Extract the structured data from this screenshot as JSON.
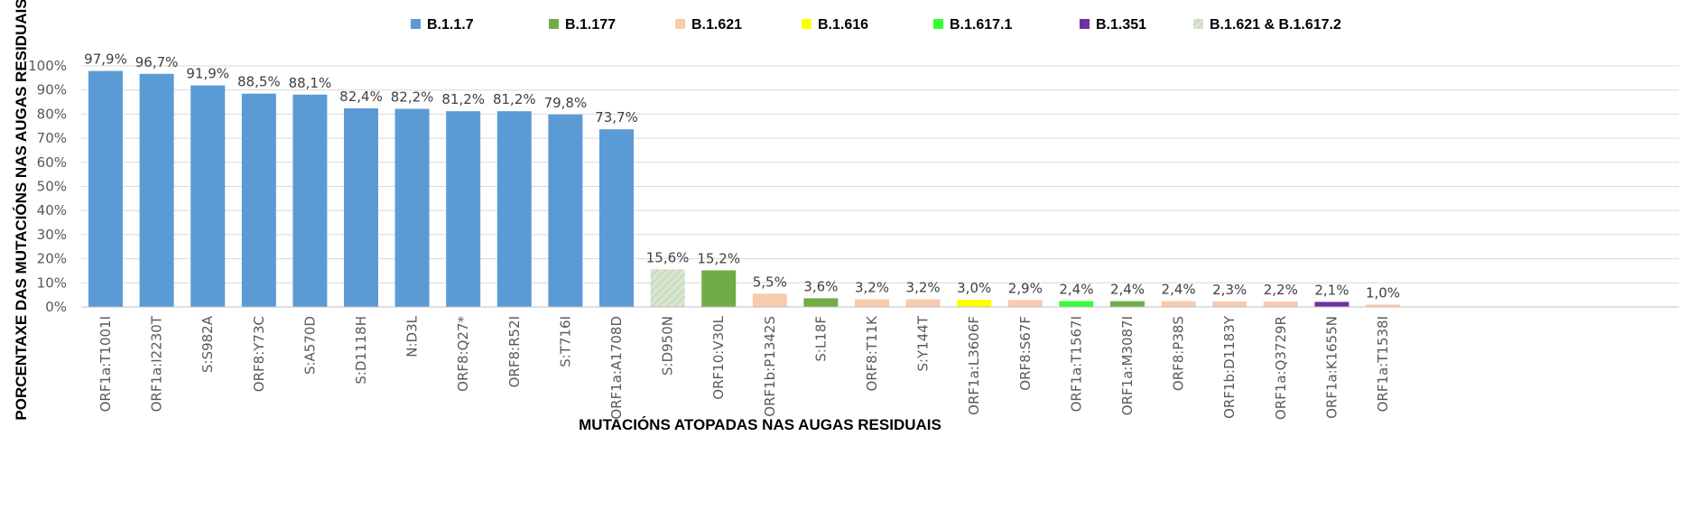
{
  "chart_data": {
    "type": "bar",
    "title": "",
    "xlabel": "MUTACIÓNS ATOPADAS NAS AUGAS RESIDUAIS",
    "ylabel": "PORCENTAXE DAS MUTACIÓNS NAS AUGAS RESIDUAIS",
    "ylim": [
      0,
      100
    ],
    "yticks": [
      "0%",
      "10%",
      "20%",
      "30%",
      "40%",
      "50%",
      "60%",
      "70%",
      "80%",
      "90%",
      "100%"
    ],
    "grid": true,
    "legend_position": "top",
    "legend": [
      {
        "name": "B.1.1.7",
        "color": "#5b9bd5"
      },
      {
        "name": "B.1.177",
        "color": "#70ad47"
      },
      {
        "name": "B.1.621",
        "color": "#f8cbad"
      },
      {
        "name": "B.1.616",
        "color": "#ffff00"
      },
      {
        "name": "B.1.617.1",
        "color": "#33ff33"
      },
      {
        "name": "B.1.351",
        "color": "#7030a0"
      },
      {
        "name": "B.1.621  &  B.1.617.2",
        "color": "hatched"
      }
    ],
    "categories": [
      "ORF1a:T1001I",
      "ORF1a:I2230T",
      "S:S982A",
      "ORF8:Y73C",
      "S:A570D",
      "S:D1118H",
      "N:D3L",
      "ORF8:Q27*",
      "ORF8:R52I",
      "S:T716I",
      "ORF1a:A1708D",
      "S:D950N",
      "ORF10:V30L",
      "ORF1b:P1342S",
      "S:L18F",
      "ORF8:T11K",
      "S:Y144T",
      "ORF1a:L3606F",
      "ORF8:S67F",
      "ORF1a:T1567I",
      "ORF1a:M3087I",
      "ORF8:P38S",
      "ORF1b:D1183Y",
      "ORF1a:Q3729R",
      "ORF1a:K1655N",
      "ORF1a:T1538I"
    ],
    "values": [
      97.9,
      96.7,
      91.9,
      88.5,
      88.1,
      82.4,
      82.2,
      81.2,
      81.2,
      79.8,
      73.7,
      15.6,
      15.2,
      5.5,
      3.6,
      3.2,
      3.2,
      3.0,
      2.9,
      2.4,
      2.4,
      2.4,
      2.3,
      2.2,
      2.1,
      1.0
    ],
    "labels": [
      "97,9%",
      "96,7%",
      "91,9%",
      "88,5%",
      "88,1%",
      "82,4%",
      "82,2%",
      "81,2%",
      "81,2%",
      "79,8%",
      "73,7%",
      "15,6%",
      "15,2%",
      "5,5%",
      "3,6%",
      "3,2%",
      "3,2%",
      "3,0%",
      "2,9%",
      "2,4%",
      "2,4%",
      "2,4%",
      "2,3%",
      "2,2%",
      "2,1%",
      "1,0%"
    ],
    "lineage": [
      "B.1.1.7",
      "B.1.1.7",
      "B.1.1.7",
      "B.1.1.7",
      "B.1.1.7",
      "B.1.1.7",
      "B.1.1.7",
      "B.1.1.7",
      "B.1.1.7",
      "B.1.1.7",
      "B.1.1.7",
      "B.1.621  &  B.1.617.2",
      "B.1.177",
      "B.1.621",
      "B.1.177",
      "B.1.621",
      "B.1.621",
      "B.1.616",
      "B.1.621",
      "B.1.617.1",
      "B.1.177",
      "B.1.621",
      "B.1.621",
      "B.1.621",
      "B.1.351",
      "B.1.621"
    ]
  }
}
